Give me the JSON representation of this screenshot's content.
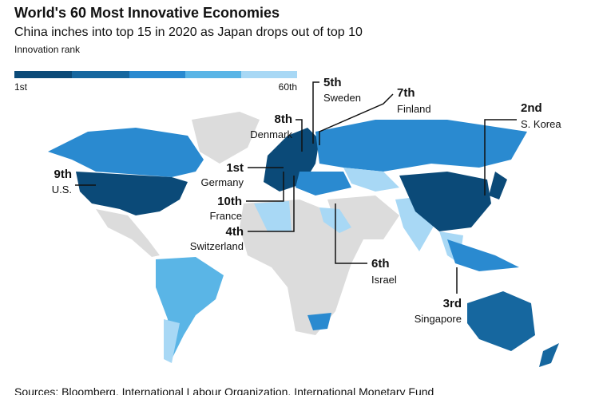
{
  "header": {
    "title": "World's 60 Most Innovative Economies",
    "subtitle": "China inches into top 15 in 2020 as Japan drops out of top 10"
  },
  "legend": {
    "title": "Innovation rank",
    "min_label": "1st",
    "max_label": "60th"
  },
  "annotations": [
    {
      "rank": "5th",
      "country": "Sweden"
    },
    {
      "rank": "7th",
      "country": "Finland"
    },
    {
      "rank": "2nd",
      "country": "S. Korea"
    },
    {
      "rank": "8th",
      "country": "Denmark"
    },
    {
      "rank": "9th",
      "country": "U.S."
    },
    {
      "rank": "1st",
      "country": "Germany"
    },
    {
      "rank": "10th",
      "country": "France"
    },
    {
      "rank": "4th",
      "country": "Switzerland"
    },
    {
      "rank": "6th",
      "country": "Israel"
    },
    {
      "rank": "3rd",
      "country": "Singapore"
    }
  ],
  "source": "Sources: Bloomberg, International Labour Organization, International Monetary Fund"
}
